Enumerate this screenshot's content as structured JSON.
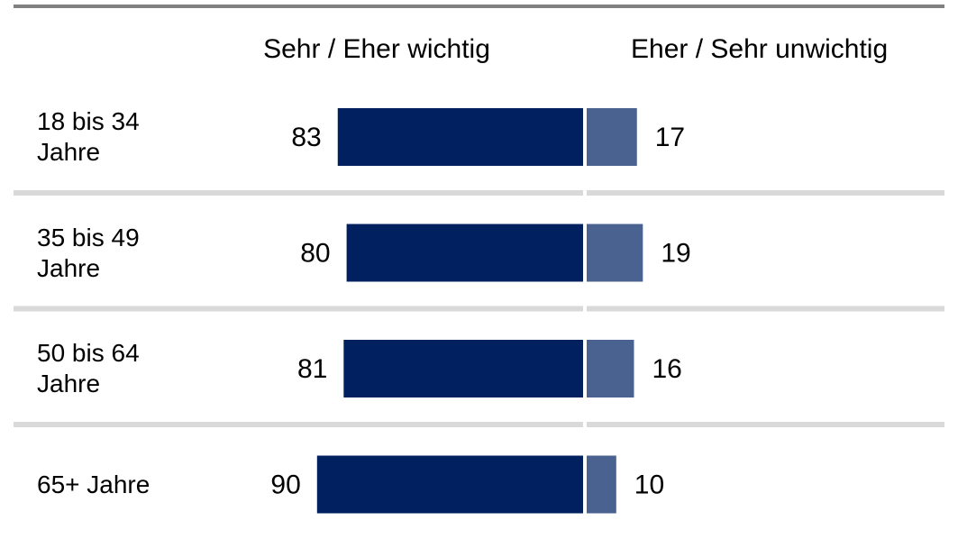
{
  "chart_data": {
    "type": "diverging-bar",
    "categories": [
      "18 bis 34 Jahre",
      "35 bis 49 Jahre",
      "50 bis 64 Jahre",
      "65+ Jahre"
    ],
    "series": [
      {
        "name": "Sehr / Eher wichtig",
        "color": "#002060",
        "values": [
          83,
          80,
          81,
          90
        ]
      },
      {
        "name": "Eher / Sehr unwichtig",
        "color": "#4a6290",
        "values": [
          17,
          19,
          16,
          10
        ]
      }
    ]
  }
}
